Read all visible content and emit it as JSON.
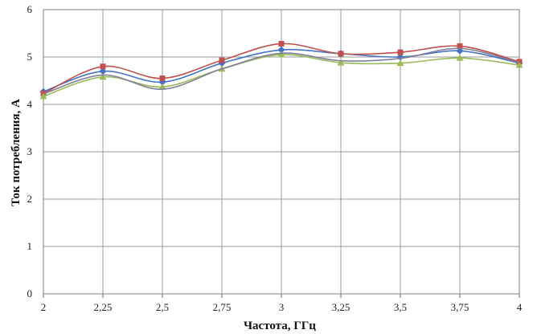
{
  "chart_data": {
    "type": "line",
    "title": "",
    "xlabel": "Частота, ГГц",
    "ylabel": "Ток потребления,  А",
    "x": [
      2,
      2.25,
      2.5,
      2.75,
      3,
      3.25,
      3.5,
      3.75,
      4
    ],
    "x_tick_labels": [
      "2",
      "2,25",
      "2,5",
      "2,75",
      "3",
      "3,25",
      "3,5",
      "3,75",
      "4"
    ],
    "y_tick_labels": [
      "0",
      "1",
      "2",
      "3",
      "4",
      "5",
      "6"
    ],
    "xlim": [
      2,
      4
    ],
    "ylim": [
      0,
      6
    ],
    "grid": true,
    "legend": "none",
    "series": [
      {
        "color": "#4472c4",
        "marker": "diamond",
        "values": [
          4.27,
          4.7,
          4.47,
          4.87,
          5.15,
          5.07,
          5.0,
          5.13,
          4.87
        ]
      },
      {
        "color": "#c0504d",
        "marker": "square",
        "values": [
          4.23,
          4.8,
          4.55,
          4.93,
          5.28,
          5.07,
          5.1,
          5.23,
          4.9
        ]
      },
      {
        "color": "#9bbb59",
        "marker": "triangle",
        "values": [
          4.17,
          4.58,
          4.37,
          4.75,
          5.05,
          4.88,
          4.87,
          4.98,
          4.83
        ]
      },
      {
        "color": "#7f7f9a",
        "marker": "none",
        "values": [
          4.22,
          4.62,
          4.32,
          4.75,
          5.08,
          4.92,
          4.97,
          5.18,
          4.88
        ]
      }
    ]
  }
}
